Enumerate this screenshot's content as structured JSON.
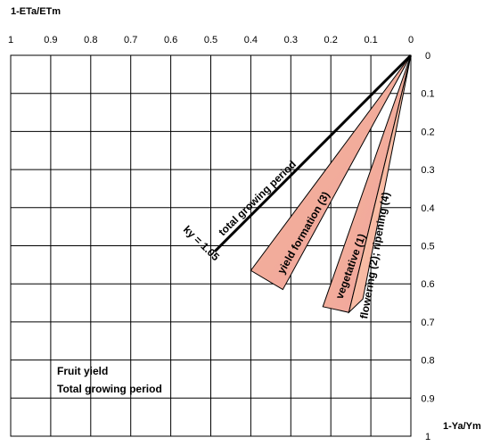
{
  "chart_data": {
    "type": "line",
    "x_axis_title": "1-ETa/ETm",
    "y_axis_title": "1-Ya/Ym",
    "x_ticks": [
      "1",
      "0.9",
      "0.8",
      "0.7",
      "0.6",
      "0.5",
      "0.4",
      "0.3",
      "0.2",
      "0.1",
      "0"
    ],
    "y_ticks": [
      "0",
      "0.1",
      "0.2",
      "0.3",
      "0.4",
      "0.5",
      "0.6",
      "0.7",
      "0.8",
      "0.9",
      "1"
    ],
    "xlim": [
      1,
      0
    ],
    "ylim": [
      0,
      1
    ],
    "x_reversed": true,
    "y_reversed": true,
    "grid": true,
    "ky_line": {
      "label": "total growing period",
      "ky_label": "ky = 1.05",
      "points": [
        [
          0,
          0
        ],
        [
          0.49,
          0.515
        ]
      ]
    },
    "wedges": [
      {
        "label": "yield formation (3)",
        "apex": [
          0,
          0
        ],
        "edge_a": [
          0.4,
          0.565
        ],
        "edge_b": [
          0.32,
          0.615
        ],
        "color": "#f0b896"
      },
      {
        "label": "vegetative (1)",
        "apex": [
          0,
          0
        ],
        "edge_a": [
          0.22,
          0.66
        ],
        "edge_b": [
          0.155,
          0.675
        ],
        "color": "#f0b896"
      },
      {
        "label": "flowering (2); ripening (4)",
        "apex": [
          0,
          0
        ],
        "edge_a": [
          0.155,
          0.675
        ],
        "edge_b": [
          0.12,
          0.64
        ],
        "color": "#fcd9a8"
      }
    ],
    "note_lines": [
      "Fruit yield",
      "Total growing period"
    ]
  }
}
